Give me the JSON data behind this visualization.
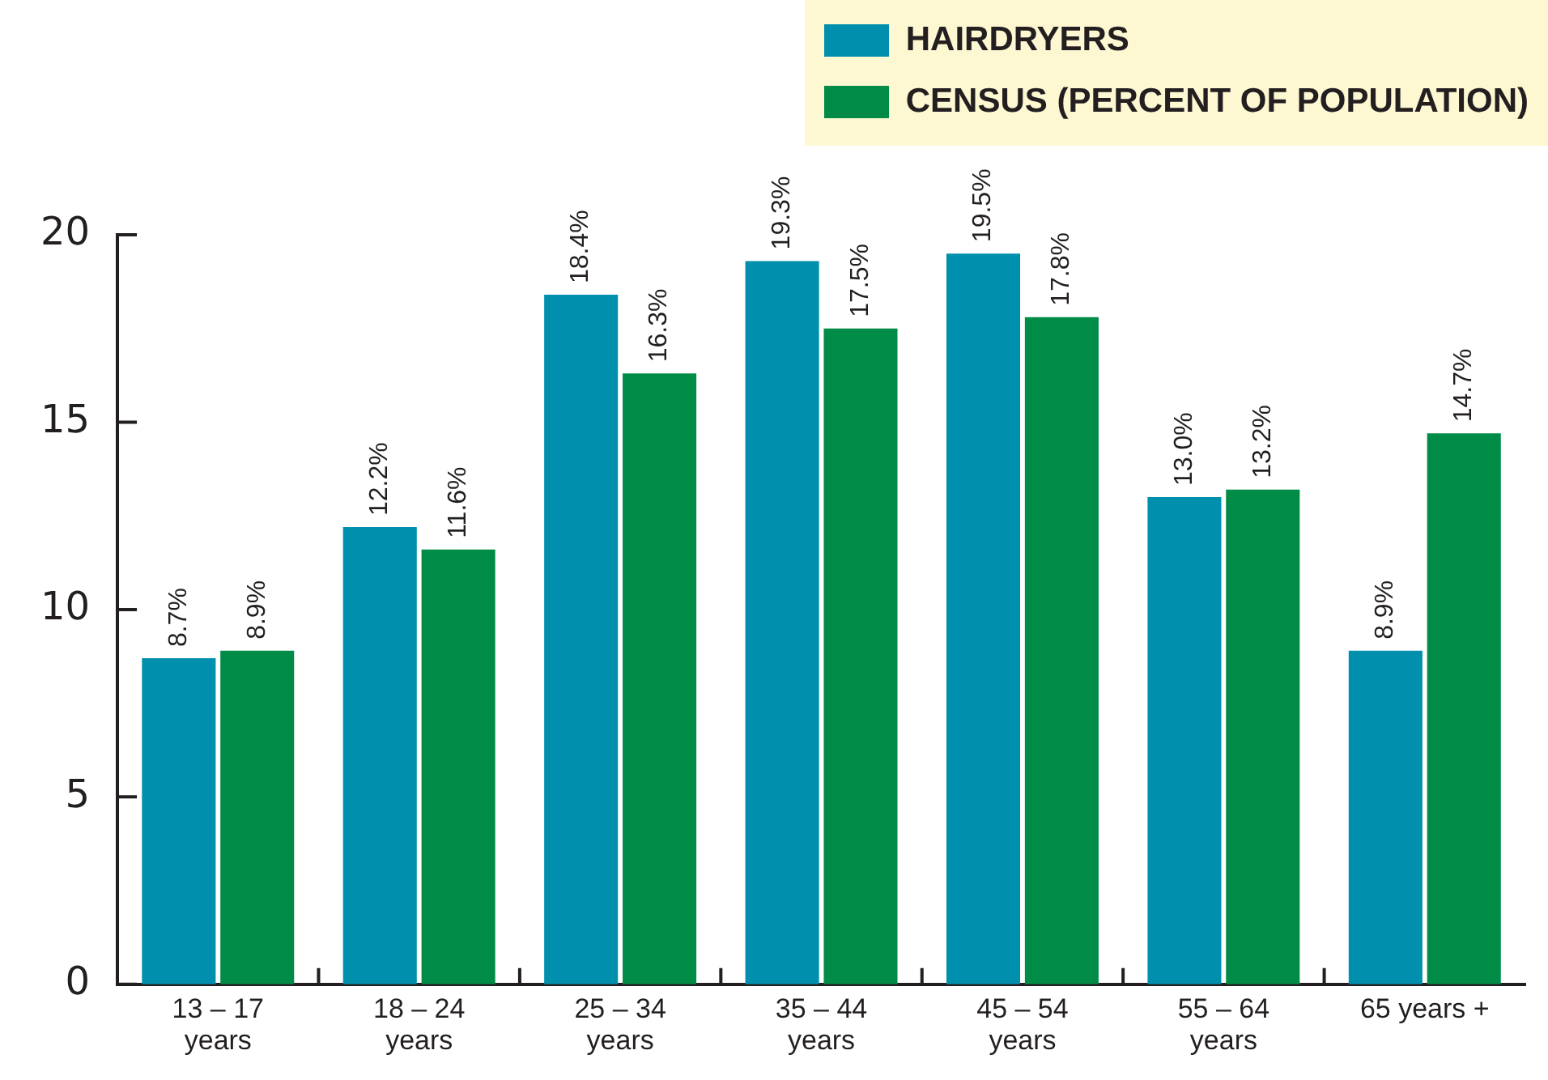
{
  "chart_data": {
    "type": "bar",
    "categories": [
      "13 – 17 years",
      "18 – 24 years",
      "25 – 34 years",
      "35 – 44 years",
      "45 – 54 years",
      "55 – 64 years",
      "65 years +"
    ],
    "series": [
      {
        "name": "HAIRDRYERS",
        "color": "#0090ae",
        "values": [
          8.7,
          12.2,
          18.4,
          19.3,
          19.5,
          13.0,
          8.9
        ],
        "value_labels": [
          "8.7%",
          "12.2%",
          "18.4%",
          "19.3%",
          "19.5%",
          "13.0%",
          "8.9%"
        ]
      },
      {
        "name": "CENSUS (PERCENT OF POPULATION)",
        "color": "#008c46",
        "values": [
          8.9,
          11.6,
          16.3,
          17.5,
          17.8,
          13.2,
          14.7
        ],
        "value_labels": [
          "8.9%",
          "11.6%",
          "16.3%",
          "17.5%",
          "17.8%",
          "13.2%",
          "14.7%"
        ]
      }
    ],
    "ylim": [
      0,
      20
    ],
    "yticks": [
      0,
      5,
      10,
      15,
      20
    ],
    "grid": false,
    "legend": "top right"
  }
}
